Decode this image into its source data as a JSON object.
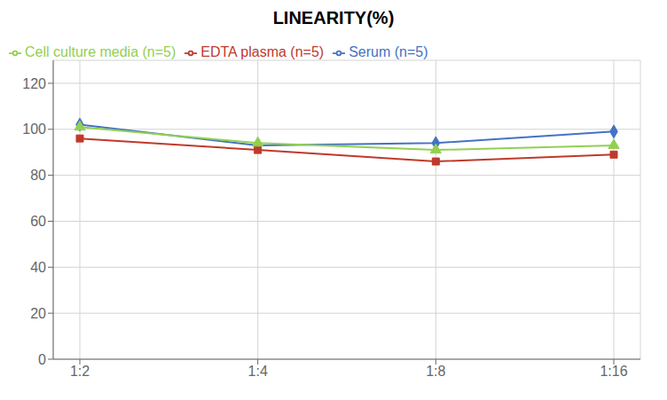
{
  "chart_data": {
    "type": "line",
    "title": "LINEARITY(%)",
    "categories": [
      "1:2",
      "1:4",
      "1:8",
      "1:16"
    ],
    "series": [
      {
        "name": "Serum (n=5)",
        "color": "#4472C4",
        "marker": "diamond",
        "values": [
          102,
          93,
          94,
          99
        ]
      },
      {
        "name": "EDTA plasma (n=5)",
        "color": "#C0392B",
        "marker": "square",
        "values": [
          96,
          91,
          86,
          89
        ]
      },
      {
        "name": "Cell culture media (n=5)",
        "color": "#92D050",
        "marker": "triangle",
        "values": [
          101,
          94,
          91,
          93
        ]
      }
    ],
    "ylim": [
      0,
      130
    ],
    "yticks": [
      0,
      20,
      40,
      60,
      80,
      100,
      120
    ],
    "grid": true,
    "legend": "upper left"
  }
}
